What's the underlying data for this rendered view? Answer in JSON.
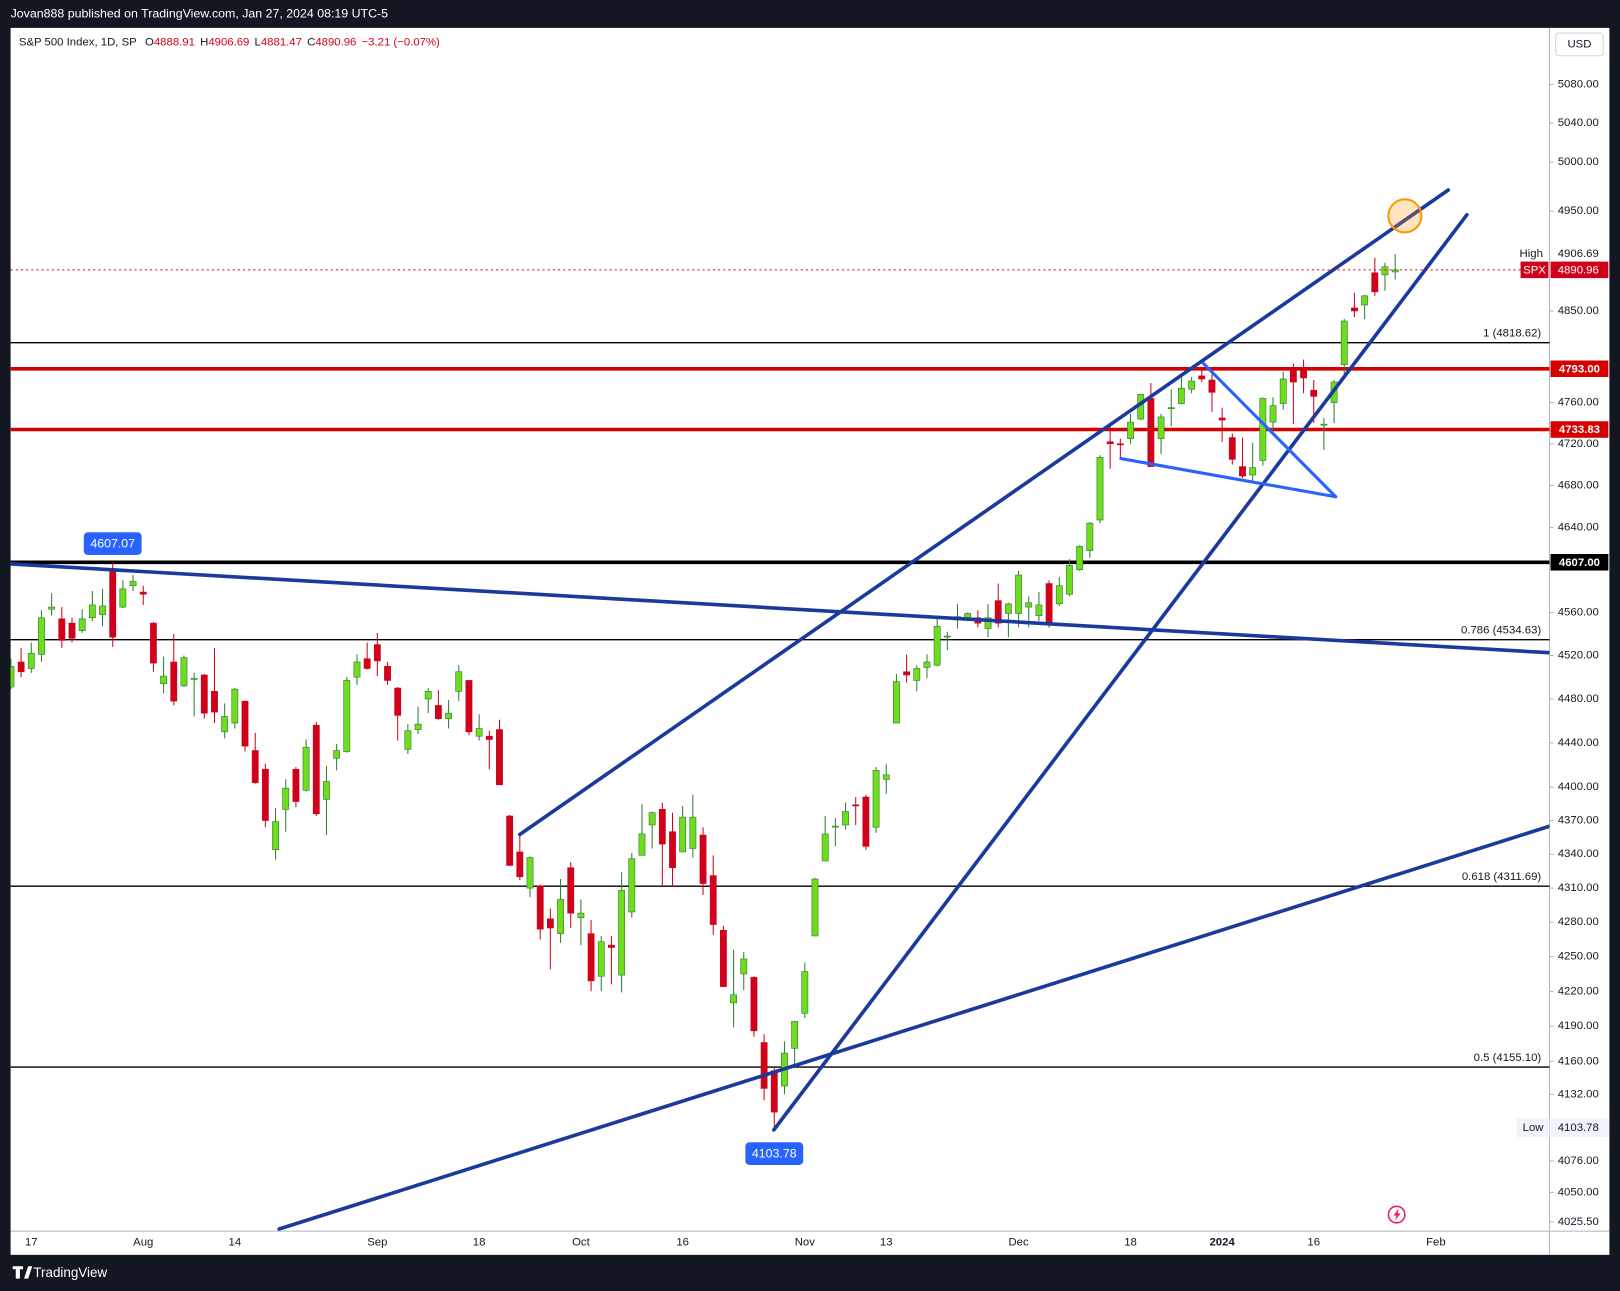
{
  "page": {
    "published": "Jovan888 published on TradingView.com, Jan 27, 2024 08:19 UTC-5",
    "footer": "TradingView"
  },
  "chart_data": {
    "type": "candlestick",
    "title": "S&P 500 Index, 1D, SP",
    "ohlc_labels": [
      "O",
      "H",
      "L",
      "C"
    ],
    "change_label": "−3.21 (−0.07%)",
    "currency": "USD",
    "last_price_label": "SPX",
    "high_label": "High",
    "low_label": "Low",
    "up_color": "#6fdc1e",
    "down_color": "#d0021b",
    "log_scale": true,
    "last_price_line": true,
    "ylim": [
      4018,
      5138
    ],
    "yticks": [
      {
        "value": 5080,
        "label": "5080.00"
      },
      {
        "value": 5040,
        "label": "5040.00"
      },
      {
        "value": 5000,
        "label": "5000.00"
      },
      {
        "value": 4950,
        "label": "4950.00"
      },
      {
        "value": 4850,
        "label": "4850.00"
      },
      {
        "value": 4760,
        "label": "4760.00"
      },
      {
        "value": 4720,
        "label": "4720.00"
      },
      {
        "value": 4680,
        "label": "4680.00"
      },
      {
        "value": 4640,
        "label": "4640.00"
      },
      {
        "value": 4560,
        "label": "4560.00"
      },
      {
        "value": 4520,
        "label": "4520.00"
      },
      {
        "value": 4480,
        "label": "4480.00"
      },
      {
        "value": 4440,
        "label": "4440.00"
      },
      {
        "value": 4400,
        "label": "4400.00"
      },
      {
        "value": 4370,
        "label": "4370.00"
      },
      {
        "value": 4340,
        "label": "4340.00"
      },
      {
        "value": 4310,
        "label": "4310.00"
      },
      {
        "value": 4280,
        "label": "4280.00"
      },
      {
        "value": 4250,
        "label": "4250.00"
      },
      {
        "value": 4220,
        "label": "4220.00"
      },
      {
        "value": 4190,
        "label": "4190.00"
      },
      {
        "value": 4160,
        "label": "4160.00"
      },
      {
        "value": 4132,
        "label": "4132.00"
      },
      {
        "value": 4076,
        "label": "4076.00"
      },
      {
        "value": 4050,
        "label": "4050.00"
      },
      {
        "value": 4025.5,
        "label": "4025.50"
      }
    ],
    "levels": [
      {
        "value": 4818.62,
        "label": "1 (4818.62)",
        "color": "#000000",
        "width": 1.3,
        "label_position": "line"
      },
      {
        "value": 4534.63,
        "label": "0.786 (4534.63)",
        "color": "#000000",
        "width": 1.3,
        "label_position": "line"
      },
      {
        "value": 4311.69,
        "label": "0.618 (4311.69)",
        "color": "#000000",
        "width": 1.3,
        "label_position": "line"
      },
      {
        "value": 4155.1,
        "label": "0.5 (4155.10)",
        "color": "#000000",
        "width": 1.3,
        "label_position": "line"
      },
      {
        "value": 4793,
        "label": "4793.00",
        "color": "#d50000",
        "width": 3.5,
        "label_position": "axis"
      },
      {
        "value": 4733.83,
        "label": "4733.83",
        "color": "#d50000",
        "width": 3.5,
        "label_position": "axis"
      },
      {
        "value": 4607,
        "label": "4607.00",
        "color": "#000000",
        "width": 3.5,
        "label_position": "axis"
      }
    ],
    "categories": [
      null,
      null,
      "17",
      null,
      null,
      null,
      null,
      null,
      null,
      null,
      null,
      null,
      null,
      "Aug",
      null,
      null,
      null,
      null,
      null,
      null,
      null,
      null,
      "14",
      null,
      null,
      null,
      null,
      null,
      null,
      null,
      null,
      null,
      null,
      null,
      null,
      null,
      "Sep",
      null,
      null,
      null,
      null,
      null,
      null,
      null,
      null,
      null,
      "18",
      null,
      null,
      null,
      null,
      null,
      null,
      null,
      null,
      null,
      "Oct",
      null,
      null,
      null,
      null,
      null,
      null,
      null,
      null,
      null,
      "16",
      null,
      null,
      null,
      null,
      null,
      null,
      null,
      null,
      null,
      null,
      null,
      "Nov",
      null,
      null,
      null,
      null,
      null,
      null,
      null,
      "13",
      null,
      null,
      null,
      null,
      null,
      null,
      null,
      null,
      null,
      null,
      null,
      null,
      "Dec",
      null,
      null,
      null,
      null,
      null,
      null,
      null,
      null,
      null,
      null,
      "18",
      null,
      null,
      null,
      null,
      null,
      null,
      null,
      null,
      "2024",
      null,
      null,
      null,
      null,
      null,
      null,
      null,
      null,
      "16",
      null,
      null,
      null,
      null,
      null,
      null,
      null,
      null,
      null,
      null,
      null,
      "Feb"
    ],
    "open": [
      4491,
      4514,
      4508,
      4521,
      4563,
      4554,
      4550,
      4543,
      4555,
      4558,
      4598,
      4565,
      4585,
      4579,
      4550,
      4494,
      4514,
      4492,
      4498,
      4502,
      4487,
      4450,
      4458,
      4478,
      4433,
      4416,
      4344,
      4380,
      4416,
      4397,
      4456,
      4389,
      4426,
      4432,
      4500,
      4517,
      4530,
      4510,
      4490,
      4434,
      4452,
      4480,
      4474,
      4462,
      4487,
      4497,
      4446,
      4446,
      4452,
      4374,
      4342,
      4310,
      4312,
      4283,
      4270,
      4328,
      4284,
      4270,
      4233,
      4260,
      4234,
      4289,
      4339,
      4366,
      4380,
      4360,
      4342,
      4345,
      4357,
      4321,
      4273,
      4210,
      4235,
      4232,
      4176,
      4152,
      4139,
      4171,
      4201,
      4268,
      4334,
      4365,
      4366,
      4384,
      4391,
      4364,
      4407,
      4458,
      4505,
      4497,
      4509,
      4511,
      4538,
      4553,
      4555,
      4555,
      4545,
      4571,
      4559,
      4559,
      4565,
      4557,
      4587,
      4568,
      4577,
      4600,
      4618,
      4647,
      4722,
      4720,
      4725,
      4744,
      4764,
      4725,
      4754,
      4759,
      4773,
      4786,
      4782,
      4745,
      4726,
      4698,
      4690,
      4704,
      4741,
      4759,
      4792,
      4791,
      4772,
      4739,
      4760,
      4797,
      4853,
      4856,
      4888,
      4886,
      4888.91,
      null,
      null,
      null,
      null
    ],
    "high": [
      4517,
      4527,
      4532,
      4562,
      4578,
      4565,
      4555,
      4563,
      4580,
      4582,
      4607.07,
      4590,
      4595,
      4585,
      4551,
      4519,
      4540,
      4520,
      4504,
      4503,
      4527,
      4476,
      4490,
      4478,
      4449,
      4421,
      4381,
      4407,
      4418,
      4443,
      4459,
      4419,
      4439,
      4500,
      4521,
      4532,
      4541,
      4514,
      4491,
      4457,
      4473,
      4490,
      4488,
      4479,
      4511,
      4497,
      4466,
      4451,
      4461,
      4375,
      4358,
      4338,
      4313,
      4292,
      4318,
      4333,
      4300,
      4282,
      4268,
      4268,
      4324,
      4341,
      4385,
      4378,
      4386,
      4377,
      4383,
      4393,
      4364,
      4339,
      4277,
      4256,
      4254,
      4233,
      4183,
      4156,
      4177,
      4194,
      4245,
      4319,
      4374,
      4372,
      4386,
      4391,
      4393,
      4418,
      4421,
      4503,
      4521,
      4511,
      4521,
      4557,
      4542,
      4568,
      4560,
      4562,
      4568,
      4587,
      4569,
      4599,
      4575,
      4579,
      4590,
      4593,
      4610,
      4623,
      4645,
      4709,
      4739,
      4725,
      4749,
      4768,
      4779,
      4749,
      4773,
      4785,
      4785,
      4793,
      4789,
      4755,
      4730,
      4726,
      4721,
      4765,
      4765,
      4790,
      4798,
      4802,
      4782,
      4745,
      4782,
      4842,
      4868,
      4866,
      4903,
      4898,
      4906.69,
      null,
      null,
      null,
      null
    ],
    "low": [
      4489,
      4500,
      4504,
      4514,
      4557,
      4527,
      4532,
      4541,
      4552,
      4547,
      4528,
      4564,
      4580,
      4567,
      4505,
      4485,
      4474,
      4491,
      4464,
      4462,
      4458,
      4444,
      4453,
      4432,
      4403,
      4364,
      4335,
      4360,
      4382,
      4396,
      4374,
      4357,
      4415,
      4431,
      4493,
      4507,
      4501,
      4493,
      4442,
      4430,
      4448,
      4467,
      4461,
      4453,
      4478,
      4447,
      4442,
      4416,
      4402,
      4330,
      4317,
      4302,
      4265,
      4239,
      4262,
      4275,
      4260,
      4220,
      4220,
      4226,
      4219,
      4284,
      4339,
      4345,
      4311,
      4311,
      4342,
      4337,
      4304,
      4269,
      4224,
      4189,
      4221,
      4181,
      4127,
      4103.78,
      4132,
      4154,
      4197,
      4268,
      4334,
      4347,
      4362,
      4366,
      4344,
      4359,
      4394,
      4458,
      4495,
      4487,
      4499,
      4510,
      4525,
      4545,
      4552,
      4546,
      4537,
      4546,
      4537,
      4546,
      4546,
      4552,
      4546,
      4566,
      4575,
      4599,
      4611,
      4644,
      4696,
      4705,
      4720,
      4743,
      4698,
      4710,
      4737,
      4758,
      4769,
      4780,
      4751,
      4722,
      4700,
      4687,
      4683,
      4699,
      4730,
      4753,
      4739,
      4769,
      4740,
      4714,
      4740,
      4785,
      4844,
      4842,
      4865,
      4870,
      4881.47,
      null,
      null,
      null,
      null
    ],
    "close": [
      4510,
      4505,
      4522,
      4555,
      4565,
      4534,
      4536,
      4554,
      4567,
      4566,
      4537,
      4582,
      4589,
      4577,
      4513,
      4501,
      4478,
      4518,
      4499,
      4467,
      4468,
      4464,
      4489,
      4437,
      4404,
      4370,
      4369,
      4399,
      4387,
      4436,
      4376,
      4405,
      4433,
      4497,
      4514,
      4508,
      4515,
      4497,
      4465,
      4451,
      4457,
      4487,
      4462,
      4467,
      4505,
      4450,
      4453,
      4443,
      4402,
      4330,
      4320,
      4337,
      4274,
      4275,
      4300,
      4288,
      4288,
      4229,
      4263,
      4258,
      4308,
      4336,
      4358,
      4377,
      4349,
      4328,
      4373,
      4373,
      4314,
      4278,
      4224,
      4217,
      4248,
      4186,
      4137,
      4117,
      4167,
      4194,
      4237,
      4318,
      4358,
      4365,
      4378,
      4383,
      4347,
      4415,
      4411,
      4496,
      4502,
      4508,
      4514,
      4547,
      4538,
      4556,
      4559,
      4550,
      4555,
      4550,
      4568,
      4595,
      4569,
      4567,
      4549,
      4585,
      4604,
      4622,
      4644,
      4707,
      4720,
      4719,
      4741,
      4768,
      4698,
      4746,
      4755,
      4774,
      4781,
      4783,
      4770,
      4743,
      4705,
      4689,
      4697,
      4764,
      4757,
      4783,
      4780,
      4784,
      4766,
      4739,
      4780,
      4840,
      4850,
      4865,
      4869,
      4894,
      4890.96,
      null,
      null,
      null,
      null
    ]
  }
}
